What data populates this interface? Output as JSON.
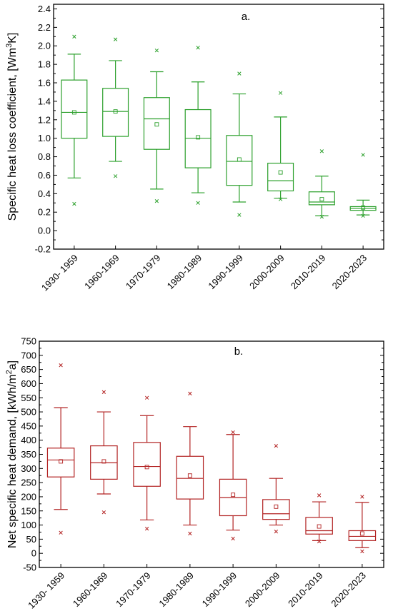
{
  "chart_data": [
    {
      "type": "box",
      "panel_label": "a.",
      "ylabel": "Specific heat loss coefficient, [Wm",
      "ylabel_sup": "3",
      "ylabel_end": "K]",
      "ylim": [
        -0.2,
        2.45
      ],
      "yticks": [
        -0.2,
        0.0,
        0.2,
        0.4,
        0.6,
        0.8,
        1.0,
        1.2,
        1.4,
        1.6,
        1.8,
        2.0,
        2.2,
        2.4
      ],
      "ytick_labels": [
        "-0.2",
        "0.0",
        "0.2",
        "0.4",
        "0.6",
        "0.8",
        "1.0",
        "1.2",
        "1.4",
        "1.6",
        "1.8",
        "2.0",
        "2.2",
        "2.4"
      ],
      "color": "#2ca02c",
      "categories": [
        "1930- 1959",
        "1960-1969",
        "1970-1979",
        "1980-1989",
        "1990-1999",
        "2000-2009",
        "2010-2019",
        "2020-2023"
      ],
      "boxes": [
        {
          "q1": 1.0,
          "median": 1.28,
          "q3": 1.63,
          "whisker_low": 0.57,
          "whisker_high": 1.91,
          "mean": 1.28,
          "min": 0.29,
          "max": 2.1
        },
        {
          "q1": 1.02,
          "median": 1.29,
          "q3": 1.54,
          "whisker_low": 0.75,
          "whisker_high": 1.84,
          "mean": 1.29,
          "min": 0.59,
          "max": 2.07
        },
        {
          "q1": 0.88,
          "median": 1.21,
          "q3": 1.44,
          "whisker_low": 0.45,
          "whisker_high": 1.72,
          "mean": 1.15,
          "min": 0.32,
          "max": 1.95
        },
        {
          "q1": 0.68,
          "median": 1.0,
          "q3": 1.31,
          "whisker_low": 0.41,
          "whisker_high": 1.61,
          "mean": 1.01,
          "min": 0.3,
          "max": 1.98
        },
        {
          "q1": 0.49,
          "median": 0.75,
          "q3": 1.03,
          "whisker_low": 0.31,
          "whisker_high": 1.48,
          "mean": 0.77,
          "min": 0.17,
          "max": 1.7
        },
        {
          "q1": 0.43,
          "median": 0.54,
          "q3": 0.73,
          "whisker_low": 0.35,
          "whisker_high": 1.23,
          "mean": 0.63,
          "min": 0.34,
          "max": 1.49
        },
        {
          "q1": 0.28,
          "median": 0.31,
          "q3": 0.42,
          "whisker_low": 0.16,
          "whisker_high": 0.59,
          "mean": 0.34,
          "min": 0.15,
          "max": 0.86
        },
        {
          "q1": 0.22,
          "median": 0.24,
          "q3": 0.26,
          "whisker_low": 0.17,
          "whisker_high": 0.33,
          "mean": 0.25,
          "min": 0.16,
          "max": 0.82
        }
      ]
    },
    {
      "type": "box",
      "panel_label": "b.",
      "ylabel": "Net specific heat demand, [kWh/m",
      "ylabel_sup": "2",
      "ylabel_end": "a]",
      "ylim": [
        -50,
        750
      ],
      "yticks": [
        -50,
        0,
        50,
        100,
        150,
        200,
        250,
        300,
        350,
        400,
        450,
        500,
        550,
        600,
        650,
        700,
        750
      ],
      "ytick_labels": [
        "-50",
        "0",
        "50",
        "100",
        "150",
        "200",
        "250",
        "300",
        "350",
        "400",
        "450",
        "500",
        "550",
        "600",
        "650",
        "700",
        "750"
      ],
      "color": "#b22222",
      "categories": [
        "1930- 1959",
        "1960-1969",
        "1970-1979",
        "1980-1989",
        "1990-1999",
        "2000-2009",
        "2010-2019",
        "2020-2023"
      ],
      "boxes": [
        {
          "q1": 270,
          "median": 330,
          "q3": 372,
          "whisker_low": 155,
          "whisker_high": 515,
          "mean": 325,
          "min": 73,
          "max": 665
        },
        {
          "q1": 262,
          "median": 320,
          "q3": 380,
          "whisker_low": 210,
          "whisker_high": 500,
          "mean": 325,
          "min": 145,
          "max": 570
        },
        {
          "q1": 237,
          "median": 307,
          "q3": 392,
          "whisker_low": 118,
          "whisker_high": 487,
          "mean": 305,
          "min": 87,
          "max": 550
        },
        {
          "q1": 192,
          "median": 265,
          "q3": 343,
          "whisker_low": 100,
          "whisker_high": 448,
          "mean": 275,
          "min": 70,
          "max": 565
        },
        {
          "q1": 133,
          "median": 197,
          "q3": 262,
          "whisker_low": 82,
          "whisker_high": 420,
          "mean": 207,
          "min": 52,
          "max": 428
        },
        {
          "q1": 120,
          "median": 140,
          "q3": 190,
          "whisker_low": 100,
          "whisker_high": 265,
          "mean": 165,
          "min": 77,
          "max": 380
        },
        {
          "q1": 68,
          "median": 80,
          "q3": 127,
          "whisker_low": 45,
          "whisker_high": 182,
          "mean": 95,
          "min": 42,
          "max": 205
        },
        {
          "q1": 45,
          "median": 60,
          "q3": 80,
          "whisker_low": 20,
          "whisker_high": 180,
          "mean": 70,
          "min": 7,
          "max": 200
        }
      ]
    }
  ]
}
